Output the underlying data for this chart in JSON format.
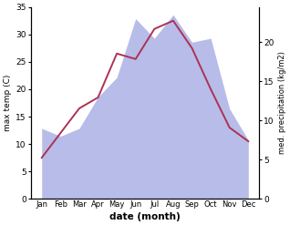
{
  "months": [
    "Jan",
    "Feb",
    "Mar",
    "Apr",
    "May",
    "Jun",
    "Jul",
    "Aug",
    "Sep",
    "Oct",
    "Nov",
    "Dec"
  ],
  "temp": [
    7.5,
    12.0,
    16.5,
    18.5,
    26.5,
    25.5,
    31.0,
    32.5,
    27.5,
    20.0,
    13.0,
    10.5
  ],
  "precip": [
    9.0,
    8.0,
    9.0,
    13.0,
    15.5,
    23.0,
    20.5,
    23.5,
    20.0,
    20.5,
    11.5,
    7.5
  ],
  "temp_color": "#aa3355",
  "precip_fill_color": "#b8bce8",
  "temp_ylim": [
    0,
    35
  ],
  "precip_ylim": [
    0,
    24.5
  ],
  "precip_yticks": [
    0,
    5,
    10,
    15,
    20
  ],
  "temp_yticks": [
    0,
    5,
    10,
    15,
    20,
    25,
    30,
    35
  ],
  "xlabel": "date (month)",
  "ylabel_left": "max temp (C)",
  "ylabel_right": "med. precipitation (kg/m2)"
}
